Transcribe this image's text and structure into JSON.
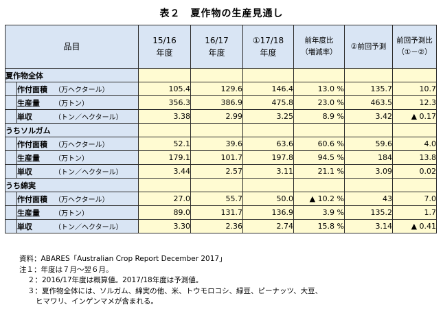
{
  "title": "表２　夏作物の生産見通し",
  "header": {
    "item": "品目",
    "col1": [
      "15/16",
      "年度"
    ],
    "col2": [
      "16/17",
      "年度"
    ],
    "col3": [
      "①17/18",
      "年度"
    ],
    "col4": [
      "前年度比",
      "（増減率）"
    ],
    "col5": "②前回予測",
    "col6": [
      "前回予測比",
      "（①－②）"
    ]
  },
  "sections": [
    {
      "name": "夏作物全体",
      "rows": [
        {
          "label": "作付面積",
          "unit": "（万ヘクタール）",
          "v": [
            "105.4",
            "129.6",
            "146.4",
            "13.0 %",
            "135.7",
            "10.7"
          ]
        },
        {
          "label": "生産量",
          "unit": "（万トン）",
          "v": [
            "356.3",
            "386.9",
            "475.8",
            "23.0 %",
            "463.5",
            "12.3"
          ]
        },
        {
          "label": "単収",
          "unit": "（トン／ヘクタール）",
          "v": [
            "3.38",
            "2.99",
            "3.25",
            "8.9 %",
            "3.42",
            "▲ 0.17"
          ]
        }
      ]
    },
    {
      "name": "うちソルガム",
      "rows": [
        {
          "label": "作付面積",
          "unit": "（万ヘクタール）",
          "v": [
            "52.1",
            "39.6",
            "63.6",
            "60.6 %",
            "59.6",
            "4.0"
          ]
        },
        {
          "label": "生産量",
          "unit": "（万トン）",
          "v": [
            "179.1",
            "101.7",
            "197.8",
            "94.5 %",
            "184",
            "13.8"
          ]
        },
        {
          "label": "単収",
          "unit": "（トン／ヘクタール）",
          "v": [
            "3.44",
            "2.57",
            "3.11",
            "21.1 %",
            "3.09",
            "0.02"
          ]
        }
      ]
    },
    {
      "name": "うち綿実",
      "rows": [
        {
          "label": "作付面積",
          "unit": "（万ヘクタール）",
          "v": [
            "27.0",
            "55.7",
            "50.0",
            "▲ 10.2 %",
            "43",
            "7.0"
          ]
        },
        {
          "label": "生産量",
          "unit": "（万トン）",
          "v": [
            "89.0",
            "131.7",
            "136.9",
            "3.9 %",
            "135.2",
            "1.7"
          ]
        },
        {
          "label": "単収",
          "unit": "（トン／ヘクタール）",
          "v": [
            "3.30",
            "2.36",
            "2.74",
            "15.8 %",
            "3.14",
            "▲ 0.41"
          ]
        }
      ]
    }
  ],
  "notes": [
    "資料：ABARES「Australian Crop Report December 2017」",
    "注１：年度は７月～翌６月。",
    "２：2016/17年度は概算値。2017/18年度は予測値。",
    "３：夏作物全体には、ソルガム、綿実の他、米、トウモロコシ、緑豆、ピーナッツ、大豆、",
    "ヒマワリ、インゲンマメが含まれる。"
  ]
}
